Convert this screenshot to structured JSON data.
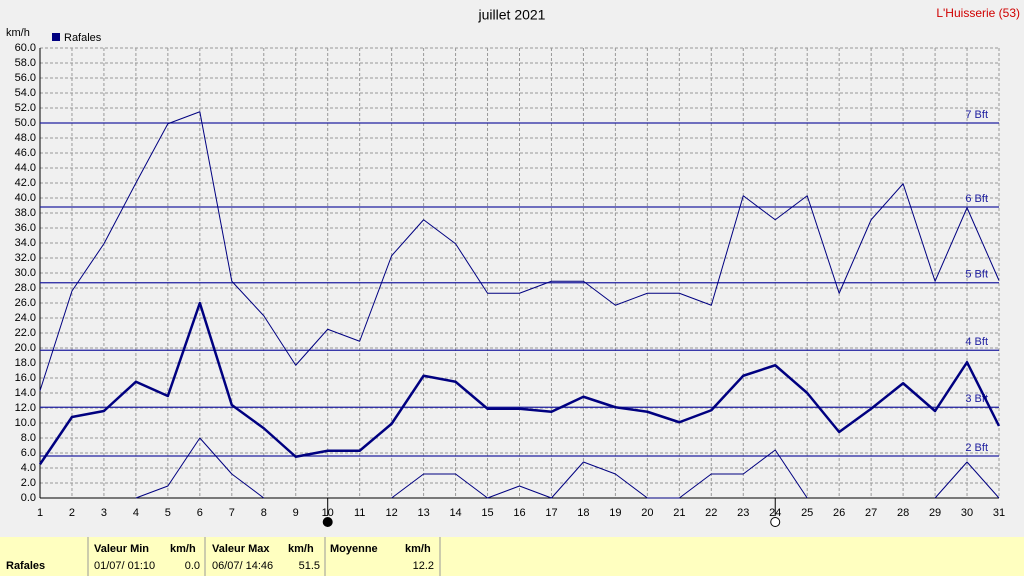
{
  "chart_data": {
    "type": "line",
    "title": "juillet 2021",
    "station": "L'Huisserie (53)",
    "y_label": "km/h",
    "legend": "Rafales",
    "legend_color": "#000080",
    "grid": true,
    "x": [
      1,
      2,
      3,
      4,
      5,
      6,
      7,
      8,
      9,
      10,
      11,
      12,
      13,
      14,
      15,
      16,
      17,
      18,
      19,
      20,
      21,
      22,
      23,
      24,
      25,
      26,
      27,
      28,
      29,
      30,
      31
    ],
    "xlim": [
      1,
      31
    ],
    "ylim": [
      0,
      60
    ],
    "yticks": [
      {
        "value": 0,
        "label": "0.0"
      },
      {
        "value": 2,
        "label": "2.0"
      },
      {
        "value": 4,
        "label": "4.0"
      },
      {
        "value": 6,
        "label": "6.0"
      },
      {
        "value": 8,
        "label": "8.0"
      },
      {
        "value": 10,
        "label": "10.0"
      },
      {
        "value": 12,
        "label": "12.0"
      },
      {
        "value": 14,
        "label": "14.0"
      },
      {
        "value": 16,
        "label": "16.0"
      },
      {
        "value": 18,
        "label": "18.0"
      },
      {
        "value": 20,
        "label": "20.0"
      },
      {
        "value": 22,
        "label": "22.0"
      },
      {
        "value": 24,
        "label": "24.0"
      },
      {
        "value": 26,
        "label": "26.0"
      },
      {
        "value": 28,
        "label": "28.0"
      },
      {
        "value": 30,
        "label": "30.0"
      },
      {
        "value": 32,
        "label": "32.0"
      },
      {
        "value": 34,
        "label": "34.0"
      },
      {
        "value": 36,
        "label": "36.0"
      },
      {
        "value": 38,
        "label": "38.0"
      },
      {
        "value": 40,
        "label": "40.0"
      },
      {
        "value": 42,
        "label": "42.0"
      },
      {
        "value": 44,
        "label": "44.0"
      },
      {
        "value": 46,
        "label": "46.0"
      },
      {
        "value": 48,
        "label": "48.0"
      },
      {
        "value": 50,
        "label": "50.0"
      },
      {
        "value": 52,
        "label": "52.0"
      },
      {
        "value": 54,
        "label": "54.0"
      },
      {
        "value": 56,
        "label": "56.0"
      },
      {
        "value": 58,
        "label": "58.0"
      },
      {
        "value": 60,
        "label": "60.0"
      }
    ],
    "series": [
      {
        "color": "#000080",
        "width": 1,
        "values": [
          14.3,
          27.6,
          33.9,
          42.0,
          49.9,
          51.5,
          28.9,
          24.3,
          17.7,
          22.5,
          20.9,
          32.3,
          37.1,
          33.9,
          27.3,
          27.3,
          28.9,
          28.9,
          25.7,
          27.3,
          27.3,
          25.7,
          40.3,
          37.1,
          40.3,
          27.3,
          37.1,
          41.9,
          28.9,
          38.7,
          29.0
        ]
      },
      {
        "color": "#000080",
        "width": 2.5,
        "values": [
          4.5,
          10.8,
          11.6,
          15.5,
          13.6,
          26.0,
          12.4,
          9.3,
          5.5,
          6.3,
          6.3,
          9.9,
          16.3,
          15.5,
          11.9,
          11.9,
          11.5,
          13.5,
          12.1,
          11.5,
          10.1,
          11.7,
          16.3,
          17.7,
          14.0,
          8.8,
          11.9,
          15.3,
          11.6,
          18.1,
          9.6
        ]
      },
      {
        "color": "#000080",
        "width": 1,
        "values": [
          null,
          null,
          null,
          0,
          1.6,
          8.0,
          3.2,
          0,
          null,
          null,
          null,
          0,
          3.2,
          3.2,
          0,
          1.6,
          0,
          4.8,
          3.2,
          0,
          0,
          3.2,
          3.2,
          6.4,
          0,
          null,
          null,
          null,
          0,
          4.8,
          0
        ]
      }
    ],
    "reference_lines": [
      {
        "value": 50.0,
        "label": "7 Bft"
      },
      {
        "value": 38.8,
        "label": "6 Bft"
      },
      {
        "value": 28.7,
        "label": "5 Bft"
      },
      {
        "value": 19.7,
        "label": "4 Bft"
      },
      {
        "value": 12.1,
        "label": "3 Bft"
      },
      {
        "value": 5.6,
        "label": "2 Bft"
      }
    ],
    "reference_color": "#2020a0",
    "moon_phases": [
      {
        "x": 10,
        "filled": true
      },
      {
        "x": 24,
        "filled": false
      }
    ],
    "summary": {
      "row_label": "Rafales",
      "min_header": "Valeur Min",
      "min_unit": "km/h",
      "min_date": "01/07/ 01:10",
      "min_value": "0.0",
      "max_header": "Valeur Max",
      "max_unit": "km/h",
      "max_date": "06/07/ 14:46",
      "max_value": "51.5",
      "mean_header": "Moyenne",
      "mean_unit": "km/h",
      "mean_value": "12.2"
    }
  }
}
